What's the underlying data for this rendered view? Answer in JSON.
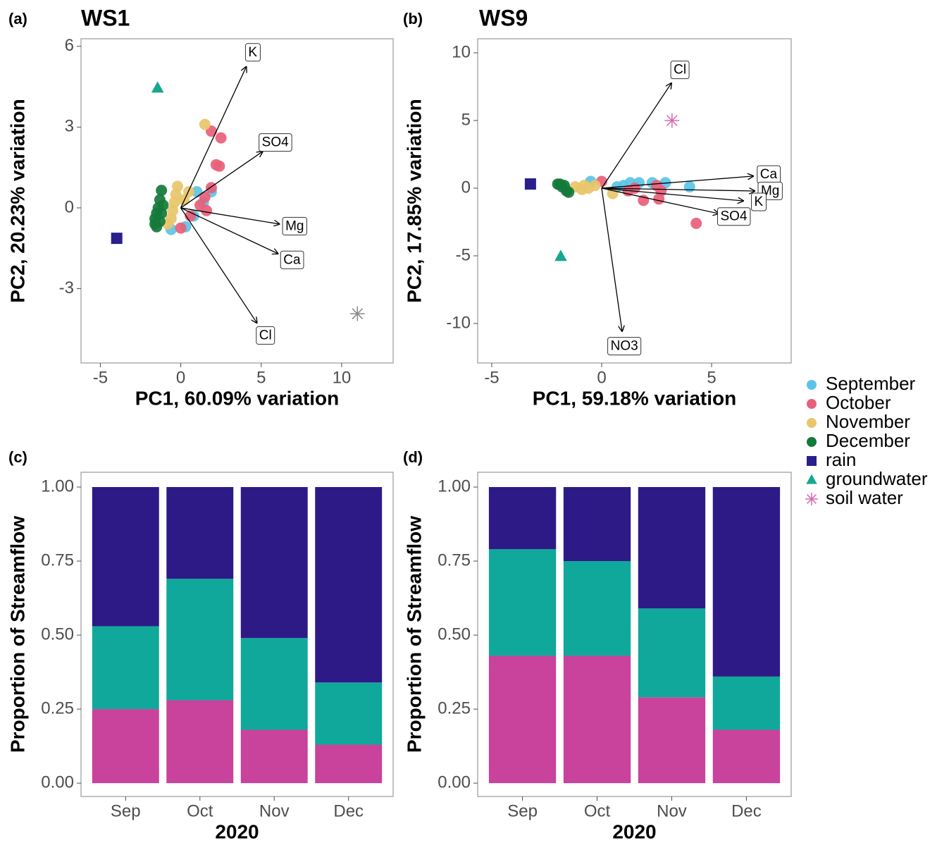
{
  "chart_data": [
    {
      "type": "biplot",
      "tag": "(a)",
      "title": "WS1",
      "xlabel": "PC1, 60.09% variation",
      "ylabel": "PC2, 20.23% variation",
      "xlim": [
        -6.2,
        13.2
      ],
      "ylim": [
        -5.76,
        6.28
      ],
      "xticks": [
        -5,
        0,
        5,
        10
      ],
      "yticks": [
        6,
        3,
        0,
        -3
      ],
      "series": [
        {
          "marker": "circle",
          "color": "#5bc4e6",
          "x": [
            -0.6,
            0.3,
            1.0,
            1.4,
            0.8,
            1.9
          ],
          "y": [
            -0.8,
            -0.7,
            0.6,
            0.2,
            -0.3,
            0.6
          ]
        },
        {
          "marker": "circle",
          "color": "#e8607a",
          "x": [
            1.9,
            2.5,
            2.2,
            2.4,
            1.9,
            1.5,
            1.2,
            0.6,
            0,
            1.6
          ],
          "y": [
            2.85,
            2.6,
            1.6,
            1.55,
            0.75,
            0.4,
            0.1,
            -0.3,
            -0.75,
            -0.1
          ]
        },
        {
          "marker": "circle",
          "color": "#e8c66a",
          "x": [
            -0.2,
            -0.3,
            -0.4,
            -0.5,
            -0.6,
            -0.8,
            1.5,
            0.5,
            0.2
          ],
          "y": [
            0.8,
            0.5,
            0.2,
            -0.1,
            -0.4,
            -0.6,
            3.1,
            0.6,
            0.3
          ]
        },
        {
          "marker": "circle",
          "color": "#137a3a",
          "x": [
            -1.2,
            -1.3,
            -1.4,
            -1.5,
            -1.6,
            -1.6,
            -1.5,
            -1.3,
            -1.2,
            -1.1
          ],
          "y": [
            0.65,
            0.3,
            0,
            -0.2,
            -0.4,
            -0.6,
            -0.7,
            -0.5,
            -0.2,
            0.1
          ]
        },
        {
          "marker": "square",
          "color": "#2a1f8c",
          "x": [
            -3.98
          ],
          "y": [
            -1.13
          ]
        },
        {
          "marker": "triangle",
          "color": "#15a88f",
          "x": [
            -1.44
          ],
          "y": [
            4.45
          ]
        },
        {
          "marker": "asterisk",
          "color": "#888888",
          "x": [
            10.98
          ],
          "y": [
            -3.93
          ]
        }
      ],
      "loadings": [
        {
          "label": "K",
          "x": 4.07,
          "y": 5.24
        },
        {
          "label": "SO4",
          "x": 5.08,
          "y": 2.09
        },
        {
          "label": "Mg",
          "x": 6.13,
          "y": -0.6
        },
        {
          "label": "Ca",
          "x": 6.04,
          "y": -1.7
        },
        {
          "label": "Cl",
          "x": 4.73,
          "y": -4.27
        }
      ]
    },
    {
      "type": "biplot",
      "tag": "(b)",
      "title": "WS9",
      "xlabel": "PC1, 59.18% variation",
      "ylabel": "PC2, 17.85% variation",
      "xlim": [
        -5.64,
        8.62
      ],
      "ylim": [
        -12.92,
        11.04
      ],
      "xticks": [
        -5,
        0,
        5
      ],
      "yticks": [
        10,
        5,
        0,
        -5,
        -10
      ],
      "series": [
        {
          "marker": "circle",
          "color": "#5bc4e6",
          "x": [
            -0.5,
            0.7,
            1.3,
            1.7,
            2.3,
            2.9,
            4.0,
            1.0
          ],
          "y": [
            0.5,
            0.1,
            0.4,
            0.4,
            0.4,
            0.4,
            0.1,
            0.2
          ]
        },
        {
          "marker": "circle",
          "color": "#e8607a",
          "x": [
            0,
            1.5,
            1.9,
            2.5,
            2.7,
            2.6,
            4.3,
            1.2
          ],
          "y": [
            0.5,
            0.0,
            -0.9,
            0.2,
            -0.2,
            -0.8,
            -2.6,
            -0.2
          ]
        },
        {
          "marker": "circle",
          "color": "#e8c66a",
          "x": [
            -1.2,
            -0.9,
            -0.6,
            -0.3,
            0.5,
            -0.8
          ],
          "y": [
            0.1,
            -0.1,
            0.0,
            0.2,
            -0.4,
            0.2
          ]
        },
        {
          "marker": "circle",
          "color": "#137a3a",
          "x": [
            -2.0,
            -1.8,
            -1.6,
            -1.5,
            -1.7,
            -1.9
          ],
          "y": [
            0.3,
            0.1,
            -0.2,
            -0.3,
            0.2,
            0.3
          ]
        },
        {
          "marker": "square",
          "color": "#2a1f8c",
          "x": [
            -3.24
          ],
          "y": [
            0.31
          ]
        },
        {
          "marker": "triangle",
          "color": "#15a88f",
          "x": [
            -1.86
          ],
          "y": [
            -5.05
          ]
        },
        {
          "marker": "asterisk",
          "color": "#d46ab0",
          "x": [
            3.2
          ],
          "y": [
            5.0
          ]
        }
      ],
      "loadings": [
        {
          "label": "Cl",
          "x": 3.17,
          "y": 7.76
        },
        {
          "label": "Ca",
          "x": 6.89,
          "y": 0.89
        },
        {
          "label": "Mg",
          "x": 6.96,
          "y": -0.21
        },
        {
          "label": "SO4",
          "x": 5.32,
          "y": -1.88
        },
        {
          "label": "K",
          "x": 6.44,
          "y": -0.94
        },
        {
          "label": "NO3",
          "x": 0.93,
          "y": -10.57
        }
      ]
    },
    {
      "type": "stacked_bar",
      "tag": "(c)",
      "xlabel": "2020",
      "ylabel": "Proportion of Streamflow",
      "categories": [
        "Sep",
        "Oct",
        "Nov",
        "Dec"
      ],
      "ylim": [
        -0.045,
        1.05
      ],
      "yticks": [
        {
          "value": 0,
          "label": "0.00"
        },
        {
          "value": 0.25,
          "label": "0.25"
        },
        {
          "value": 0.5,
          "label": "0.50"
        },
        {
          "value": 0.75,
          "label": "0.75"
        },
        {
          "value": 1,
          "label": "1.00"
        }
      ],
      "series": [
        {
          "color": "#c9429c",
          "values": [
            0.25,
            0.28,
            0.18,
            0.13
          ]
        },
        {
          "color": "#10a89b",
          "values": [
            0.28,
            0.41,
            0.31,
            0.21
          ]
        },
        {
          "color": "#2e1a87",
          "values": [
            0.47,
            0.31,
            0.51,
            0.66
          ]
        }
      ]
    },
    {
      "type": "stacked_bar",
      "tag": "(d)",
      "xlabel": "2020",
      "ylabel": "Proportion of Streamflow",
      "categories": [
        "Sep",
        "Oct",
        "Nov",
        "Dec"
      ],
      "ylim": [
        -0.045,
        1.05
      ],
      "yticks": [
        {
          "value": 0,
          "label": "0.00"
        },
        {
          "value": 0.25,
          "label": "0.25"
        },
        {
          "value": 0.5,
          "label": "0.50"
        },
        {
          "value": 0.75,
          "label": "0.75"
        },
        {
          "value": 1,
          "label": "1.00"
        }
      ],
      "series": [
        {
          "color": "#c9429c",
          "values": [
            0.43,
            0.43,
            0.29,
            0.18
          ]
        },
        {
          "color": "#10a89b",
          "values": [
            0.36,
            0.32,
            0.3,
            0.18
          ]
        },
        {
          "color": "#2e1a87",
          "values": [
            0.21,
            0.25,
            0.41,
            0.64
          ]
        }
      ]
    }
  ],
  "legend": [
    {
      "name": "September",
      "marker": "circle",
      "color": "#5bc4e6"
    },
    {
      "name": "October",
      "marker": "circle",
      "color": "#e8607a"
    },
    {
      "name": "November",
      "marker": "circle",
      "color": "#e8c66a"
    },
    {
      "name": "December",
      "marker": "circle",
      "color": "#137a3a"
    },
    {
      "name": "rain",
      "marker": "square",
      "color": "#2a1f8c"
    },
    {
      "name": "groundwater",
      "marker": "triangle",
      "color": "#15a88f"
    },
    {
      "name": "soil water",
      "marker": "asterisk",
      "color": "#d46ab0"
    }
  ]
}
